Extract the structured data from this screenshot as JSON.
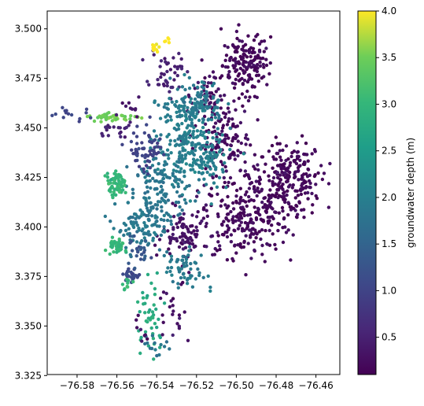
{
  "chart_data": {
    "type": "scatter",
    "title": "",
    "xlabel": "",
    "ylabel": "",
    "xlim": [
      -76.595,
      -76.448
    ],
    "ylim": [
      3.3255,
      3.509
    ],
    "x_ticks": [
      -76.58,
      -76.56,
      -76.54,
      -76.52,
      -76.5,
      -76.48,
      -76.46
    ],
    "x_tick_labels": [
      "−76.58",
      "−76.56",
      "−76.54",
      "−76.52",
      "−76.50",
      "−76.48",
      "−76.46"
    ],
    "y_ticks": [
      3.325,
      3.35,
      3.375,
      3.4,
      3.425,
      3.45,
      3.475,
      3.5
    ],
    "y_tick_labels": [
      "3.325",
      "3.350",
      "3.375",
      "3.400",
      "3.425",
      "3.450",
      "3.475",
      "3.500"
    ],
    "grid": false,
    "colormap": "viridis",
    "colorbar": {
      "label": "groundwater depth (m)",
      "range": [
        0.1,
        4.0
      ],
      "ticks": [
        0.5,
        1.0,
        1.5,
        2.0,
        2.5,
        3.0,
        3.5,
        4.0
      ],
      "tick_labels": [
        "0.5",
        "1.0",
        "1.5",
        "2.0",
        "2.5",
        "3.0",
        "3.5",
        "4.0"
      ]
    },
    "clusters": [
      {
        "x": -76.495,
        "y": 3.482,
        "sx": 0.006,
        "sy": 0.008,
        "n": 170,
        "depth": 0.2
      },
      {
        "x": -76.475,
        "y": 3.425,
        "sx": 0.009,
        "sy": 0.009,
        "n": 230,
        "depth": 0.2
      },
      {
        "x": -76.495,
        "y": 3.405,
        "sx": 0.011,
        "sy": 0.01,
        "n": 240,
        "depth": 0.2
      },
      {
        "x": -76.505,
        "y": 3.442,
        "sx": 0.006,
        "sy": 0.01,
        "n": 120,
        "depth": 0.25
      },
      {
        "x": -76.515,
        "y": 3.465,
        "sx": 0.004,
        "sy": 0.007,
        "n": 60,
        "depth": 0.25
      },
      {
        "x": -76.525,
        "y": 3.395,
        "sx": 0.006,
        "sy": 0.007,
        "n": 90,
        "depth": 0.3
      },
      {
        "x": -76.535,
        "y": 3.478,
        "sx": 0.004,
        "sy": 0.005,
        "n": 45,
        "depth": 0.5
      },
      {
        "x": -76.522,
        "y": 3.44,
        "sx": 0.009,
        "sy": 0.011,
        "n": 260,
        "depth": 2.0
      },
      {
        "x": -76.522,
        "y": 3.462,
        "sx": 0.008,
        "sy": 0.006,
        "n": 110,
        "depth": 1.9
      },
      {
        "x": -76.538,
        "y": 3.418,
        "sx": 0.007,
        "sy": 0.008,
        "n": 120,
        "depth": 1.8
      },
      {
        "x": -76.548,
        "y": 3.4,
        "sx": 0.006,
        "sy": 0.007,
        "n": 100,
        "depth": 1.85
      },
      {
        "x": -76.525,
        "y": 3.378,
        "sx": 0.005,
        "sy": 0.005,
        "n": 60,
        "depth": 1.9
      },
      {
        "x": -76.545,
        "y": 3.44,
        "sx": 0.004,
        "sy": 0.006,
        "n": 60,
        "depth": 1.0
      },
      {
        "x": -76.553,
        "y": 3.376,
        "sx": 0.002,
        "sy": 0.002,
        "n": 30,
        "depth": 1.1
      },
      {
        "x": -76.55,
        "y": 3.388,
        "sx": 0.003,
        "sy": 0.003,
        "n": 25,
        "depth": 1.3
      },
      {
        "x": -76.56,
        "y": 3.422,
        "sx": 0.0025,
        "sy": 0.003,
        "n": 70,
        "depth": 3.0
      },
      {
        "x": -76.56,
        "y": 3.39,
        "sx": 0.002,
        "sy": 0.002,
        "n": 40,
        "depth": 3.0
      },
      {
        "x": -76.555,
        "y": 3.372,
        "sx": 0.002,
        "sy": 0.002,
        "n": 10,
        "depth": 3.0
      },
      {
        "x": -76.543,
        "y": 3.355,
        "sx": 0.004,
        "sy": 0.008,
        "n": 45,
        "depth": 2.8
      },
      {
        "x": -76.54,
        "y": 3.34,
        "sx": 0.004,
        "sy": 0.003,
        "n": 14,
        "depth": 1.8
      },
      {
        "x": -76.541,
        "y": 3.49,
        "sx": 0.0015,
        "sy": 0.0015,
        "n": 10,
        "depth": 4.0
      },
      {
        "x": -76.535,
        "y": 3.494,
        "sx": 0.001,
        "sy": 0.001,
        "n": 5,
        "depth": 4.0
      },
      {
        "x": -76.563,
        "y": 3.455,
        "sx": 0.006,
        "sy": 0.0012,
        "n": 40,
        "depth": 3.5
      },
      {
        "x": -76.56,
        "y": 3.449,
        "sx": 0.005,
        "sy": 0.002,
        "n": 20,
        "depth": 0.5
      },
      {
        "x": -76.582,
        "y": 3.457,
        "sx": 0.005,
        "sy": 0.0015,
        "n": 14,
        "depth": 1.0
      },
      {
        "x": -76.552,
        "y": 3.46,
        "sx": 0.003,
        "sy": 0.003,
        "n": 10,
        "depth": 0.4
      },
      {
        "x": -76.53,
        "y": 3.358,
        "sx": 0.005,
        "sy": 0.008,
        "n": 22,
        "depth": 0.3
      },
      {
        "x": -76.548,
        "y": 3.345,
        "sx": 0.002,
        "sy": 0.004,
        "n": 8,
        "depth": 0.3
      }
    ]
  }
}
